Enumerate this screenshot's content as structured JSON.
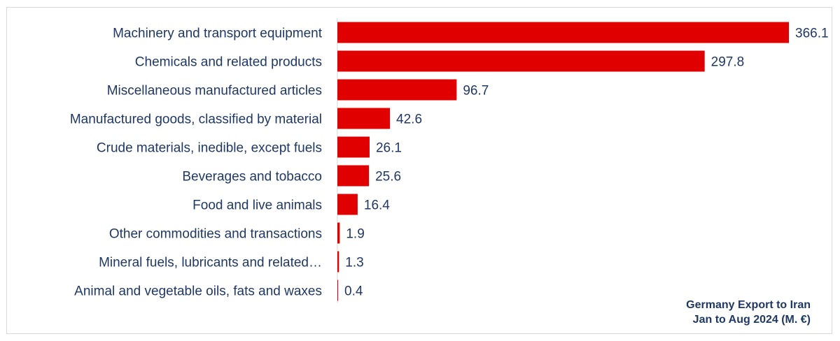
{
  "chart_data": {
    "type": "bar",
    "orientation": "horizontal",
    "title_lines": [
      "Germany Export to Iran",
      "Jan to Aug 2024 (M. €)"
    ],
    "categories": [
      "Machinery and transport equipment",
      "Chemicals and related products",
      "Miscellaneous manufactured articles",
      "Manufactured goods, classified by material",
      "Crude materials, inedible, except fuels",
      "Beverages and tobacco",
      "Food and live animals",
      "Other commodities and transactions",
      "Mineral fuels, lubricants and related…",
      "Animal and vegetable oils, fats and waxes"
    ],
    "values": [
      366.1,
      297.8,
      96.7,
      42.6,
      26.1,
      25.6,
      16.4,
      1.9,
      1.3,
      0.4
    ],
    "value_labels": [
      "366.1",
      "297.8",
      "96.7",
      "42.6",
      "26.1",
      "25.6",
      "16.4",
      "1.9",
      "1.3",
      "0.4"
    ],
    "xlim": [
      0,
      366.1
    ],
    "xlabel": "",
    "ylabel": "",
    "grid": false,
    "legend": "none",
    "colors": {
      "bar": "#e00000",
      "text": "#1f3864",
      "axis": "#d9d9d9"
    }
  }
}
